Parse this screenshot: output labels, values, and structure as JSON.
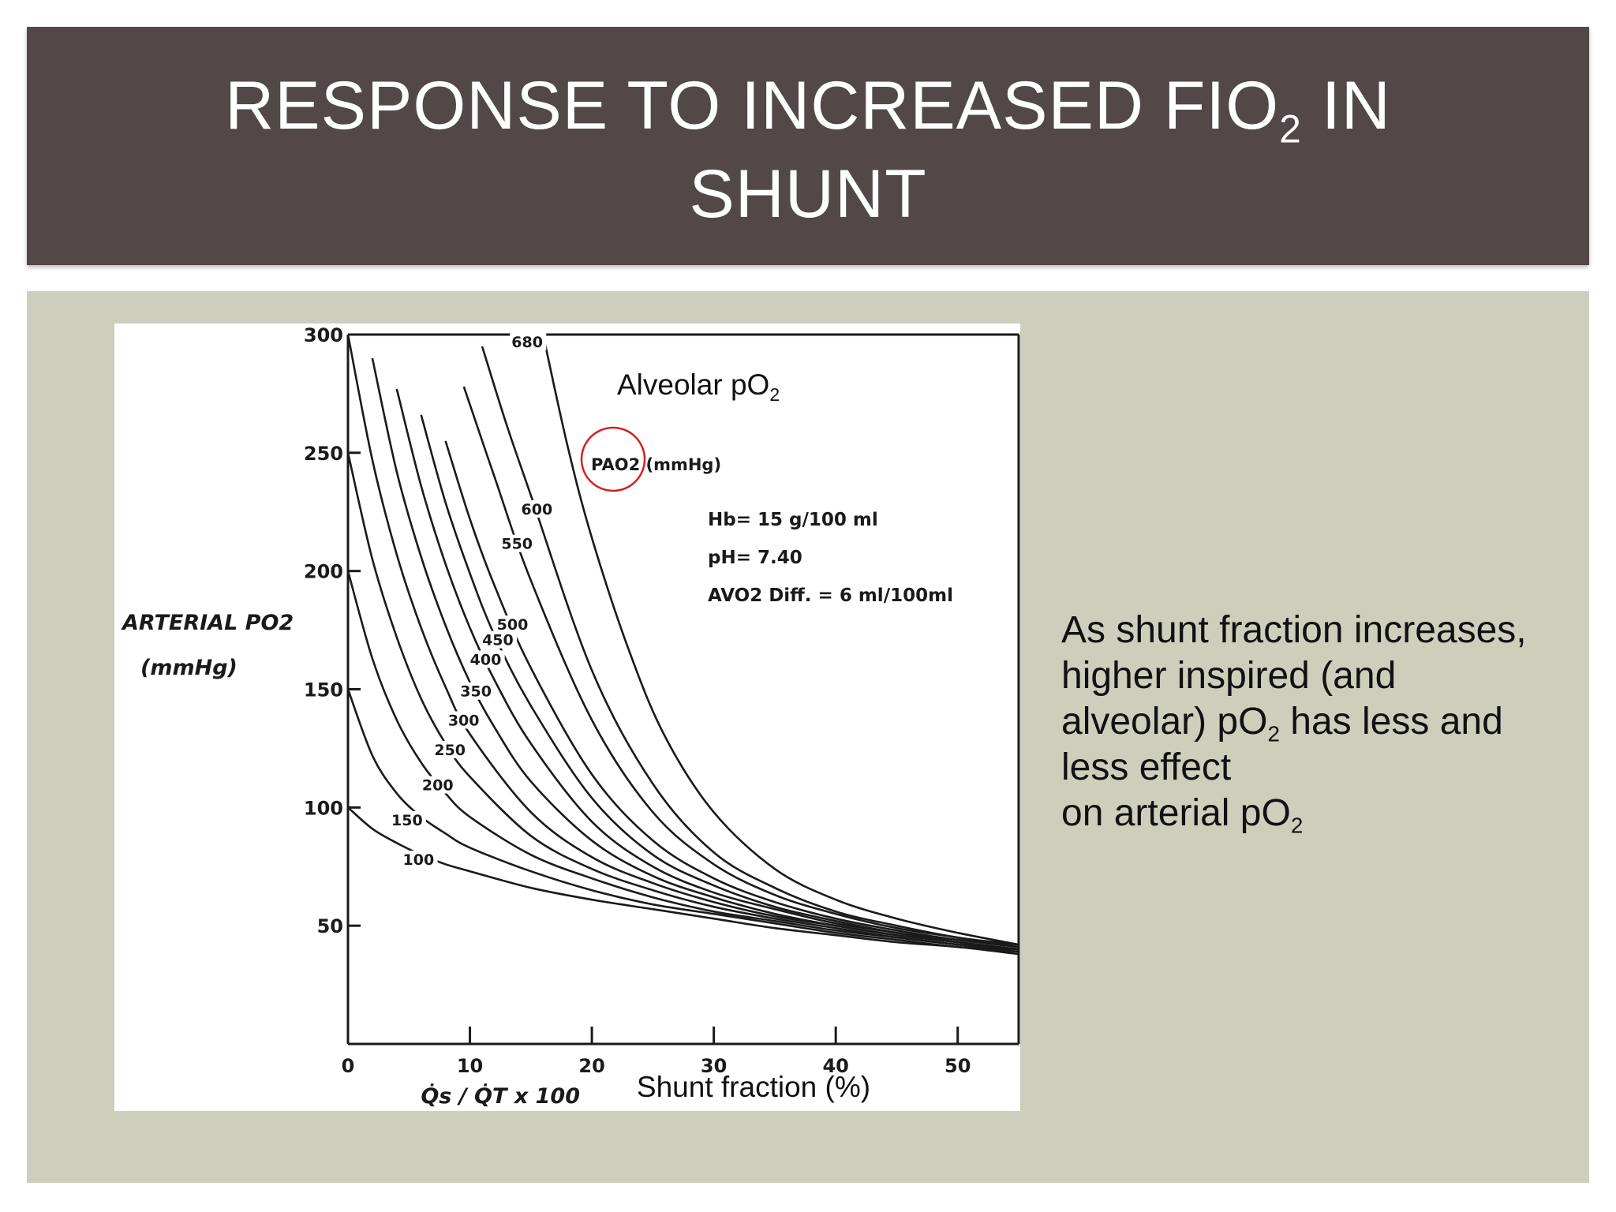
{
  "slide": {
    "title_main": "RESPONSE TO INCREASED FIO",
    "title_sub": "2",
    "title_after": " IN",
    "title_line2": "SHUNT"
  },
  "body_text": {
    "line1": "As shunt fraction increases,",
    "line2": "higher inspired (and",
    "line3_before": "alveolar) pO",
    "line3_sub": "2",
    "line3_after": " has less and",
    "line4": "less effect",
    "line5_before": "on arterial pO",
    "line5_sub": "2"
  },
  "overlay": {
    "alveolar_label": "Alveolar pO",
    "alveolar_sub": "2",
    "shunt_label": "Shunt fraction (%)"
  },
  "colors": {
    "title_bar": "#524848",
    "panel": "#cdcfbc",
    "highlight_circle": "#d42020"
  },
  "chart_data": {
    "type": "line",
    "xlabel": "Q̇s / Q̇T x 100",
    "ylabel_line1": "ARTERIAL PO2",
    "ylabel_line2": "(mmHg)",
    "xlim": [
      0,
      55
    ],
    "ylim": [
      0,
      300
    ],
    "x_ticks": [
      0,
      10,
      20,
      30,
      40,
      50
    ],
    "y_ticks": [
      50,
      100,
      150,
      200,
      250,
      300
    ],
    "grid": false,
    "legend_title": "PAO2 (mmHg)",
    "annotations": [
      "Hb= 15 g/100 ml",
      "pH= 7.40",
      "AVO2 Diff. = 6 ml/100ml"
    ],
    "series": [
      {
        "name": "100",
        "x": [
          0,
          2,
          4,
          6,
          8,
          10,
          15,
          20,
          25,
          30,
          35,
          40,
          45,
          50,
          55
        ],
        "y": [
          100,
          91,
          85,
          80,
          76,
          73,
          66,
          61,
          57,
          53,
          49,
          46,
          43,
          41,
          38
        ]
      },
      {
        "name": "150",
        "x": [
          0,
          2,
          4,
          6,
          8,
          10,
          15,
          20,
          25,
          30,
          35,
          40,
          45,
          50,
          55
        ],
        "y": [
          150,
          122,
          106,
          96,
          89,
          83,
          73,
          65,
          59,
          55,
          51,
          47,
          44,
          41,
          39
        ]
      },
      {
        "name": "200",
        "x": [
          0,
          2,
          4,
          6,
          8,
          10,
          15,
          20,
          25,
          30,
          35,
          40,
          45,
          50,
          55
        ],
        "y": [
          200,
          163,
          137,
          119,
          106,
          96,
          80,
          70,
          62,
          56,
          52,
          48,
          45,
          42,
          39
        ]
      },
      {
        "name": "250",
        "x": [
          0,
          2,
          4,
          6,
          8,
          10,
          15,
          20,
          25,
          30,
          35,
          40,
          45,
          50,
          55
        ],
        "y": [
          250,
          205,
          172,
          146,
          127,
          113,
          88,
          74,
          65,
          58,
          53,
          49,
          45,
          42,
          40
        ]
      },
      {
        "name": "300",
        "x": [
          0,
          2,
          4,
          6,
          8,
          10,
          15,
          20,
          25,
          30,
          35,
          40,
          45,
          50,
          55
        ],
        "y": [
          300,
          247,
          207,
          176,
          151,
          131,
          98,
          79,
          68,
          60,
          54,
          50,
          46,
          43,
          40
        ]
      },
      {
        "name": "350",
        "x": [
          2,
          4,
          6,
          8,
          10,
          12,
          15,
          20,
          25,
          30,
          35,
          40,
          45,
          50,
          55
        ],
        "y": [
          290,
          242,
          206,
          177,
          153,
          134,
          111,
          86,
          71,
          62,
          55,
          50,
          46,
          43,
          40
        ]
      },
      {
        "name": "400",
        "x": [
          4,
          6,
          8,
          10,
          12,
          15,
          20,
          25,
          30,
          35,
          40,
          45,
          50,
          55
        ],
        "y": [
          277,
          236,
          203,
          176,
          154,
          127,
          94,
          75,
          64,
          57,
          51,
          47,
          43,
          40
        ]
      },
      {
        "name": "450",
        "x": [
          6,
          8,
          10,
          12,
          15,
          20,
          25,
          30,
          35,
          40,
          45,
          50,
          55
        ],
        "y": [
          266,
          229,
          199,
          173,
          143,
          104,
          80,
          67,
          58,
          52,
          47,
          44,
          41
        ]
      },
      {
        "name": "500",
        "x": [
          8,
          10,
          12,
          15,
          20,
          25,
          30,
          35,
          40,
          45,
          50,
          55
        ],
        "y": [
          255,
          222,
          194,
          159,
          114,
          86,
          70,
          60,
          53,
          48,
          44,
          41
        ]
      },
      {
        "name": "550",
        "x": [
          9.5,
          12,
          15,
          20,
          25,
          30,
          35,
          40,
          45,
          50,
          55
        ],
        "y": [
          278,
          240,
          196,
          137,
          98,
          76,
          63,
          55,
          49,
          45,
          41
        ]
      },
      {
        "name": "600",
        "x": [
          11,
          13,
          15,
          20,
          25,
          30,
          35,
          40,
          45,
          50,
          55
        ],
        "y": [
          295,
          262,
          232,
          158,
          110,
          81,
          66,
          56,
          50,
          45,
          42
        ]
      },
      {
        "name": "680",
        "x": [
          16,
          18,
          20,
          23,
          26,
          30,
          35,
          40,
          45,
          50,
          55
        ],
        "y": [
          300,
          253,
          214,
          167,
          130,
          98,
          74,
          61,
          53,
          47,
          42
        ]
      }
    ]
  }
}
